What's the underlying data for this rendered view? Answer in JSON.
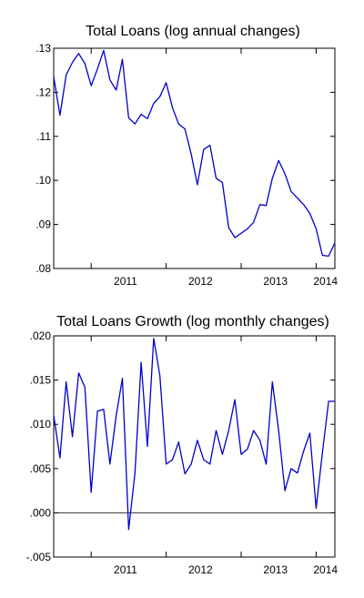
{
  "chart_data": [
    {
      "type": "line",
      "title": "Total Loans (log annual changes)",
      "xlabel": "",
      "ylabel": "",
      "ylim": [
        0.08,
        0.13
      ],
      "yticks": [
        ".08",
        ".09",
        ".10",
        ".11",
        ".12",
        ".13"
      ],
      "xticks": [
        "2011",
        "2012",
        "2013",
        "2014"
      ],
      "x_range": [
        "2010-07",
        "2014-04"
      ],
      "series": [
        {
          "color": "#0000cc",
          "x": [
            "2010-07",
            "2010-08",
            "2010-09",
            "2010-10",
            "2010-11",
            "2010-12",
            "2011-01",
            "2011-02",
            "2011-03",
            "2011-04",
            "2011-05",
            "2011-06",
            "2011-07",
            "2011-08",
            "2011-09",
            "2011-10",
            "2011-11",
            "2011-12",
            "2012-01",
            "2012-02",
            "2012-03",
            "2012-04",
            "2012-05",
            "2012-06",
            "2012-07",
            "2012-08",
            "2012-09",
            "2012-10",
            "2012-11",
            "2012-12",
            "2013-01",
            "2013-02",
            "2013-03",
            "2013-04",
            "2013-05",
            "2013-06",
            "2013-07",
            "2013-08",
            "2013-09",
            "2013-10",
            "2013-11",
            "2013-12",
            "2014-01",
            "2014-02",
            "2014-03",
            "2014-04"
          ],
          "values": [
            0.1235,
            0.1148,
            0.1239,
            0.1268,
            0.1288,
            0.1265,
            0.1215,
            0.1253,
            0.1295,
            0.1228,
            0.1205,
            0.1275,
            0.1142,
            0.1128,
            0.115,
            0.114,
            0.1175,
            0.119,
            0.1222,
            0.1165,
            0.1128,
            0.1117,
            0.106,
            0.099,
            0.107,
            0.108,
            0.1005,
            0.0995,
            0.0893,
            0.087,
            0.088,
            0.089,
            0.0905,
            0.0945,
            0.0943,
            0.1005,
            0.1045,
            0.1015,
            0.0975,
            0.096,
            0.0945,
            0.0925,
            0.089,
            0.083,
            0.0828,
            0.0858
          ]
        }
      ]
    },
    {
      "type": "line",
      "title": "Total Loans Growth (log monthly changes)",
      "xlabel": "",
      "ylabel": "",
      "ylim": [
        -0.005,
        0.02
      ],
      "yticks": [
        "-.005",
        ".000",
        ".005",
        ".010",
        ".015",
        ".020"
      ],
      "xticks": [
        "2011",
        "2012",
        "2013",
        "2014"
      ],
      "x_range": [
        "2010-07",
        "2014-04"
      ],
      "zero_line": true,
      "series": [
        {
          "color": "#0000cc",
          "x": [
            "2010-07",
            "2010-08",
            "2010-09",
            "2010-10",
            "2010-11",
            "2010-12",
            "2011-01",
            "2011-02",
            "2011-03",
            "2011-04",
            "2011-05",
            "2011-06",
            "2011-07",
            "2011-08",
            "2011-09",
            "2011-10",
            "2011-11",
            "2011-12",
            "2012-01",
            "2012-02",
            "2012-03",
            "2012-04",
            "2012-05",
            "2012-06",
            "2012-07",
            "2012-08",
            "2012-09",
            "2012-10",
            "2012-11",
            "2012-12",
            "2013-01",
            "2013-02",
            "2013-03",
            "2013-04",
            "2013-05",
            "2013-06",
            "2013-07",
            "2013-08",
            "2013-09",
            "2013-10",
            "2013-11",
            "2013-12",
            "2014-01",
            "2014-02",
            "2014-03",
            "2014-04"
          ],
          "values": [
            0.011,
            0.0062,
            0.0148,
            0.0086,
            0.0158,
            0.0142,
            0.0023,
            0.0115,
            0.0117,
            0.0055,
            0.011,
            0.0152,
            -0.0019,
            0.0045,
            0.017,
            0.0075,
            0.0197,
            0.0155,
            0.0055,
            0.006,
            0.008,
            0.0044,
            0.0055,
            0.0082,
            0.006,
            0.0055,
            0.0093,
            0.0066,
            0.0093,
            0.0128,
            0.0066,
            0.0072,
            0.0093,
            0.0082,
            0.0055,
            0.0148,
            0.0093,
            0.0025,
            0.005,
            0.0045,
            0.007,
            0.009,
            0.0005,
            0.0068,
            0.0126,
            0.0126
          ]
        }
      ]
    }
  ]
}
